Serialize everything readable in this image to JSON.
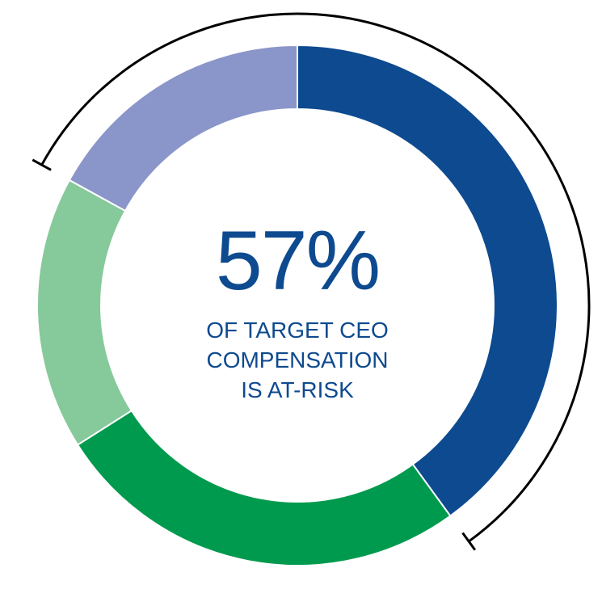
{
  "chart_data": {
    "type": "pie",
    "variant": "donut",
    "values": [
      40,
      26,
      17,
      17
    ],
    "colors": [
      "#0d4a8f",
      "#009a4e",
      "#86c99b",
      "#8a96c9"
    ],
    "start": "top",
    "direction": "clockwise",
    "bracket_covers_segments": [
      3,
      0
    ],
    "center_value": "57%",
    "center_label_lines": [
      "OF TARGET CEO",
      "COMPENSATION",
      "IS AT-RISK"
    ]
  }
}
